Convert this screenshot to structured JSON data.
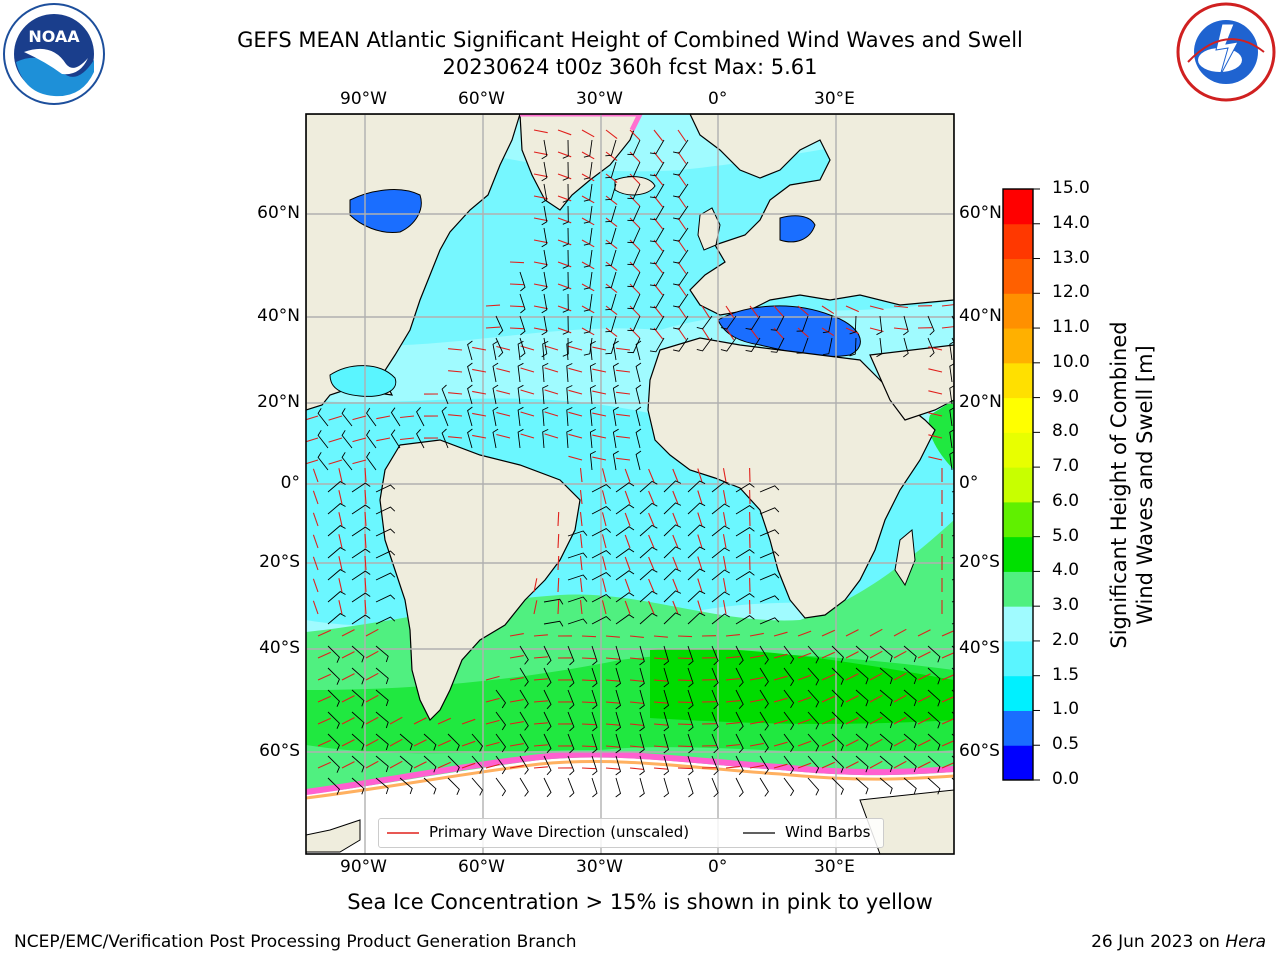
{
  "header": {
    "title_line1": "GEFS MEAN Atlantic Significant Height of Combined Wind Waves and Swell",
    "title_line2": "20230624 t00z 360h fcst   Max: 5.61"
  },
  "logos": {
    "left": "noaa-logo",
    "right": "national-weather-service-logo",
    "left_text": "NOAA",
    "right_text": "NATIONAL WEATHER SERVICE"
  },
  "map": {
    "lon_labels_top": [
      "90°W",
      "60°W",
      "30°W",
      "0°",
      "30°E"
    ],
    "lon_labels_bottom": [
      "90°W",
      "60°W",
      "30°W",
      "0°",
      "30°E"
    ],
    "lat_labels_left": [
      "60°N",
      "40°N",
      "20°N",
      "0°",
      "20°S",
      "40°S",
      "60°S"
    ],
    "lat_labels_right": [
      "60°N",
      "40°N",
      "20°N",
      "0°",
      "20°S",
      "40°S",
      "60°S"
    ],
    "colors": {
      "land": "#efeddd",
      "ice": "#ffffff",
      "grid": "#b0b0b0",
      "arrow": "#e0201c",
      "barb": "#000000"
    }
  },
  "legend": {
    "wave_direction": "Primary Wave Direction (unscaled)",
    "wind_barbs": "Wind Barbs"
  },
  "colorbar": {
    "label_line1": "Significant Height of Combined",
    "label_line2": "Wind Waves and Swell [m]",
    "ticks": [
      "0.0",
      "0.5",
      "1.0",
      "1.5",
      "2.0",
      "3.0",
      "4.0",
      "5.0",
      "6.0",
      "7.0",
      "8.0",
      "9.0",
      "10.0",
      "11.0",
      "12.0",
      "13.0",
      "14.0",
      "15.0"
    ],
    "colors": [
      "#0000ff",
      "#1a6eff",
      "#00f0ff",
      "#5af5ff",
      "#a0fbff",
      "#50f080",
      "#00e000",
      "#60f000",
      "#c8ff00",
      "#e8ff00",
      "#ffff00",
      "#ffe000",
      "#ffb000",
      "#ff9000",
      "#ff6000",
      "#ff3800",
      "#ff0000"
    ]
  },
  "caption": "Sea Ice Concentration > 15% is shown in pink to yellow",
  "footer": {
    "left": "NCEP/EMC/Verification Post Processing Product Generation Branch",
    "right_date": "26 Jun 2023 on ",
    "right_host": "Hera"
  }
}
